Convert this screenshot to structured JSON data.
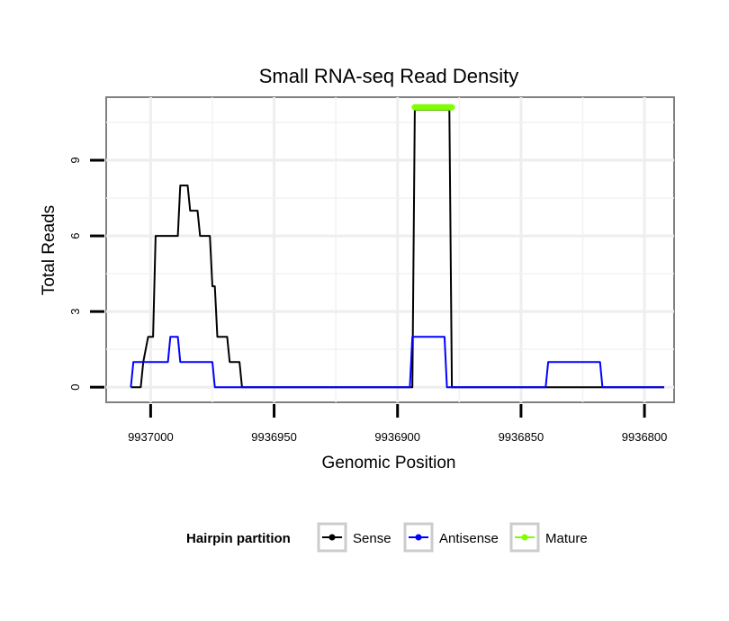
{
  "chart_data": {
    "type": "line",
    "title": "Small RNA-seq Read Density",
    "xlabel": "Genomic Position",
    "ylabel": "Total Reads",
    "xlim": [
      9937018,
      9936788
    ],
    "ylim": [
      -0.6,
      11.5
    ],
    "x_reversed": true,
    "x_ticks": [
      9937000,
      9936950,
      9936900,
      9936850,
      9936800
    ],
    "x_tick_labels": [
      "9937000",
      "9936950",
      "9936900",
      "9936850",
      "9936800"
    ],
    "y_ticks": [
      0,
      3,
      6,
      9
    ],
    "y_tick_labels": [
      "0",
      "3",
      "6",
      "9"
    ],
    "grid": true,
    "legend": {
      "title": "Hairpin partition",
      "position": "bottom",
      "entries": [
        "Sense",
        "Antisense",
        "Mature"
      ]
    },
    "series": [
      {
        "name": "Sense",
        "color": "#000000",
        "x": [
          9937008,
          9937004,
          9937003,
          9937001,
          9936999,
          9936998,
          9936989,
          9936988,
          9936985,
          9936984,
          9936981,
          9936980,
          9936976,
          9936975,
          9936974,
          9936973,
          9936969,
          9936968,
          9936964,
          9936963,
          9936962,
          9936961,
          9936955,
          9936954,
          9936952,
          9936951,
          9936894,
          9936893,
          9936879,
          9936878,
          9936876,
          9936875,
          9936792
        ],
        "y": [
          0,
          0,
          1,
          2,
          2,
          6,
          6,
          8,
          8,
          7,
          7,
          6,
          6,
          4,
          4,
          2,
          2,
          1,
          1,
          0,
          0,
          0,
          0,
          0,
          0,
          0,
          0,
          11,
          11,
          0,
          0,
          0,
          0
        ]
      },
      {
        "name": "Antisense",
        "color": "#0000ff",
        "x": [
          9937008,
          9937007,
          9936993,
          9936992,
          9936989,
          9936988,
          9936975,
          9936974,
          9936965,
          9936964,
          9936895,
          9936894,
          9936881,
          9936880,
          9936840,
          9936839,
          9936818,
          9936817,
          9936792
        ],
        "y": [
          0,
          1,
          1,
          2,
          2,
          1,
          1,
          0,
          0,
          0,
          0,
          2,
          2,
          0,
          0,
          1,
          1,
          0,
          0
        ]
      },
      {
        "name": "Mature",
        "color": "#7fff00",
        "x": [
          9936893,
          9936878
        ],
        "y": [
          11.1,
          11.1
        ]
      }
    ]
  }
}
